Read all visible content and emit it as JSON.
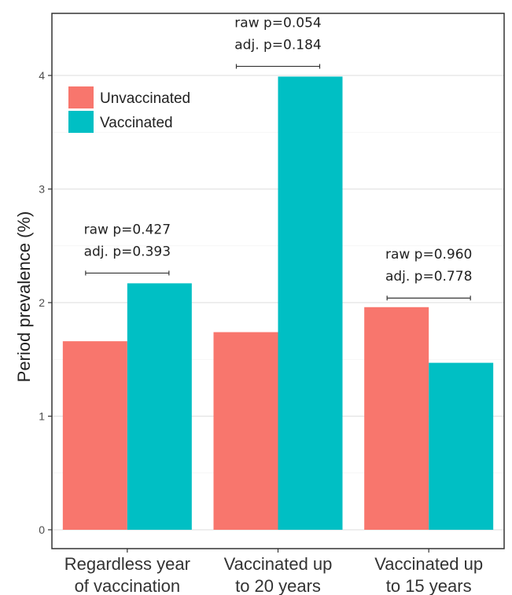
{
  "chart_data": {
    "type": "bar",
    "ylabel": "Period prevalence (%)",
    "ylim": [
      0,
      4.2
    ],
    "yticks": [
      0,
      1,
      2,
      3,
      4
    ],
    "grid": true,
    "legend_position": "top-left",
    "categories": [
      [
        "Regardless year",
        "of vaccination"
      ],
      [
        "Vaccinated up",
        "to 20 years"
      ],
      [
        "Vaccinated up",
        "to 15 years"
      ]
    ],
    "series": [
      {
        "name": "Unvaccinated",
        "color": "#F8766D",
        "values": [
          1.66,
          1.74,
          1.96
        ]
      },
      {
        "name": "Vaccinated",
        "color": "#00BFC4",
        "values": [
          2.17,
          3.99,
          1.47
        ]
      }
    ],
    "annotations": [
      {
        "lines": [
          "raw p=0.427",
          "adj. p=0.393"
        ],
        "category": 0,
        "y": 2.26
      },
      {
        "lines": [
          "raw p=0.054",
          "adj. p=0.184"
        ],
        "category": 1,
        "y": 4.08
      },
      {
        "lines": [
          "raw p=0.960",
          "adj. p=0.778"
        ],
        "category": 2,
        "y": 2.04
      }
    ]
  }
}
